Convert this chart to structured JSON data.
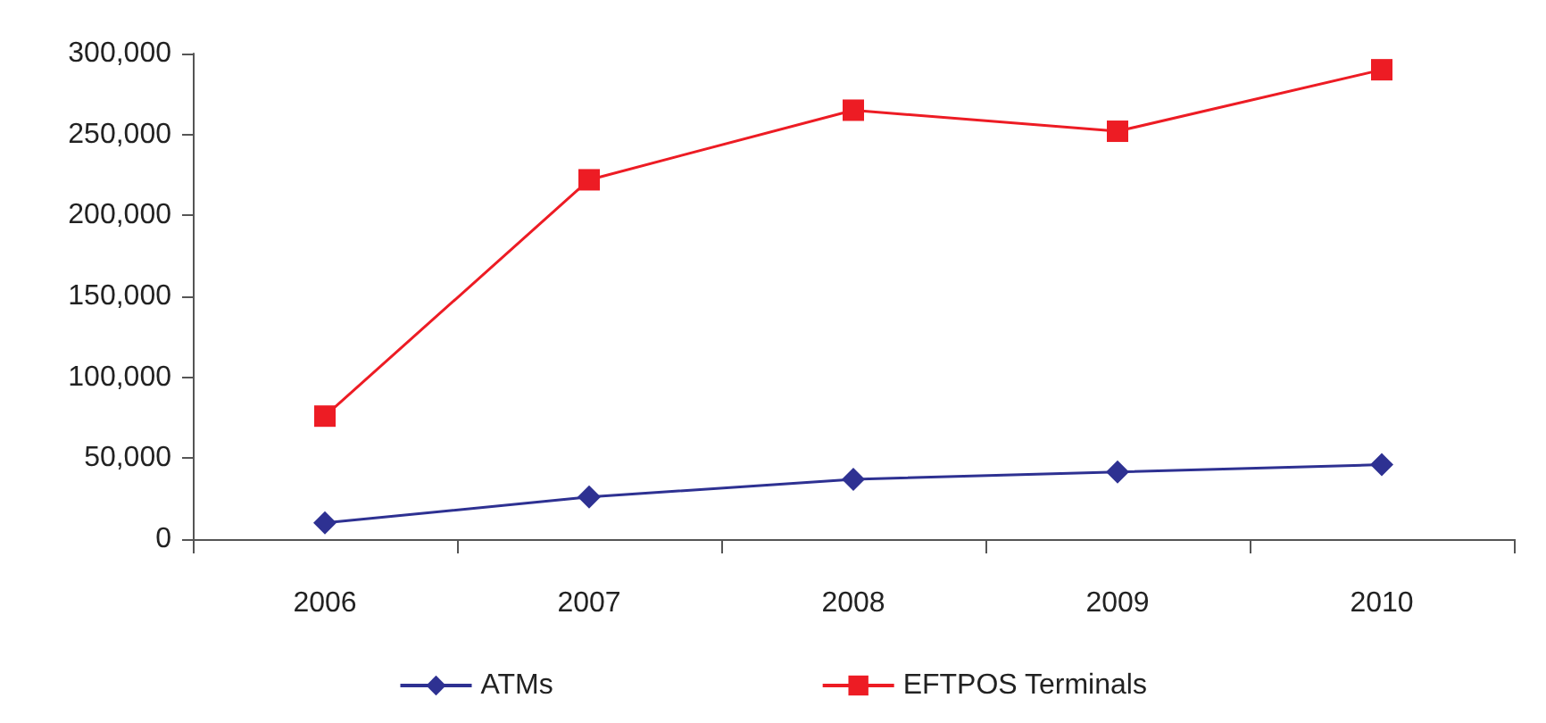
{
  "chart_data": {
    "type": "line",
    "categories": [
      "2006",
      "2007",
      "2008",
      "2009",
      "2010"
    ],
    "series": [
      {
        "name": "ATMs",
        "color": "#2e3192",
        "marker": "diamond",
        "values": [
          10000,
          26000,
          37000,
          41500,
          46000
        ]
      },
      {
        "name": "EFTPOS Terminals",
        "color": "#ed1c24",
        "marker": "square",
        "values": [
          76000,
          222000,
          265000,
          252000,
          290000
        ]
      }
    ],
    "ylim": [
      0,
      300000
    ],
    "yticks": [
      {
        "value": 0,
        "label": "0"
      },
      {
        "value": 50000,
        "label": "50,000"
      },
      {
        "value": 100000,
        "label": "100,000"
      },
      {
        "value": 150000,
        "label": "150,000"
      },
      {
        "value": 200000,
        "label": "200,000"
      },
      {
        "value": 250000,
        "label": "250,000"
      },
      {
        "value": 300000,
        "label": "300,000"
      }
    ],
    "legend": "bottom"
  }
}
